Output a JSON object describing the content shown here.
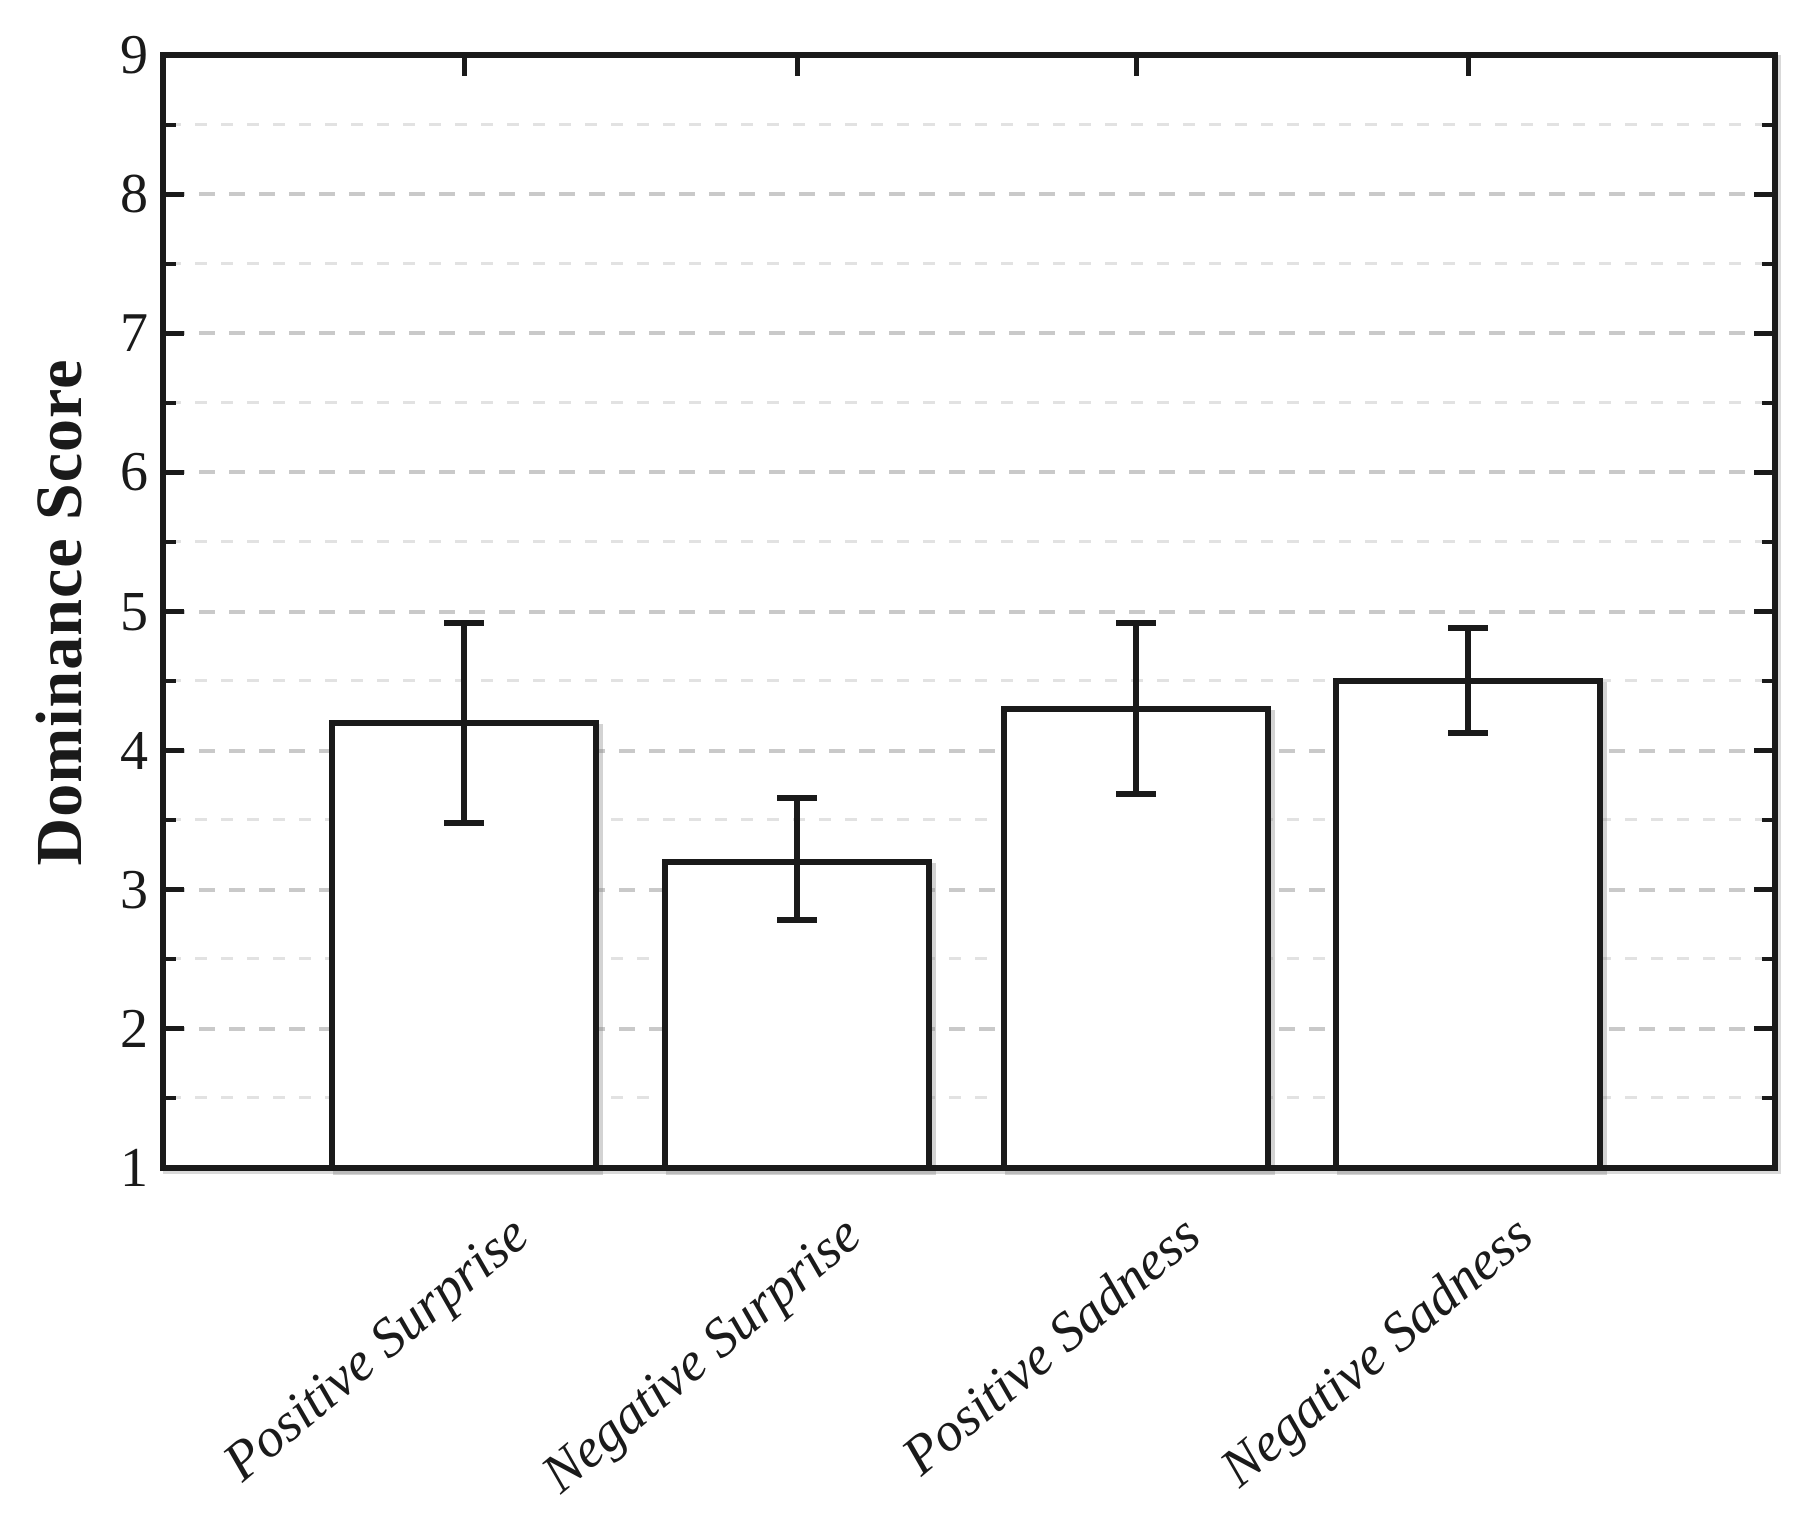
{
  "figure": {
    "background": "#ffffff"
  },
  "chart_data": {
    "type": "bar",
    "title": "",
    "ylabel": "Dominance Score",
    "xlabel": "",
    "categories": [
      "Positive Surprise",
      "Negative Surprise",
      "Positive Sadness",
      "Negative Sadness"
    ],
    "values": [
      4.2,
      3.2,
      4.3,
      4.5
    ],
    "error_plus": [
      0.72,
      0.46,
      0.62,
      0.38
    ],
    "error_minus": [
      0.72,
      0.42,
      0.61,
      0.37
    ],
    "ylim": [
      1,
      9
    ],
    "ytick_labels": [
      "1",
      "2",
      "3",
      "4",
      "5",
      "6",
      "7",
      "8",
      "9"
    ],
    "minor_tick_step": 0.5,
    "grid": {
      "horizontal_dashed": true,
      "major_color": "#c9c9c9",
      "minor_color": "#e2e2e2"
    },
    "legend": null,
    "bar_fill": "#ffffff",
    "line_color": "#1a1a1a",
    "xticklabel_rotation_deg": -40,
    "xticklabel_style": "italic serif"
  }
}
